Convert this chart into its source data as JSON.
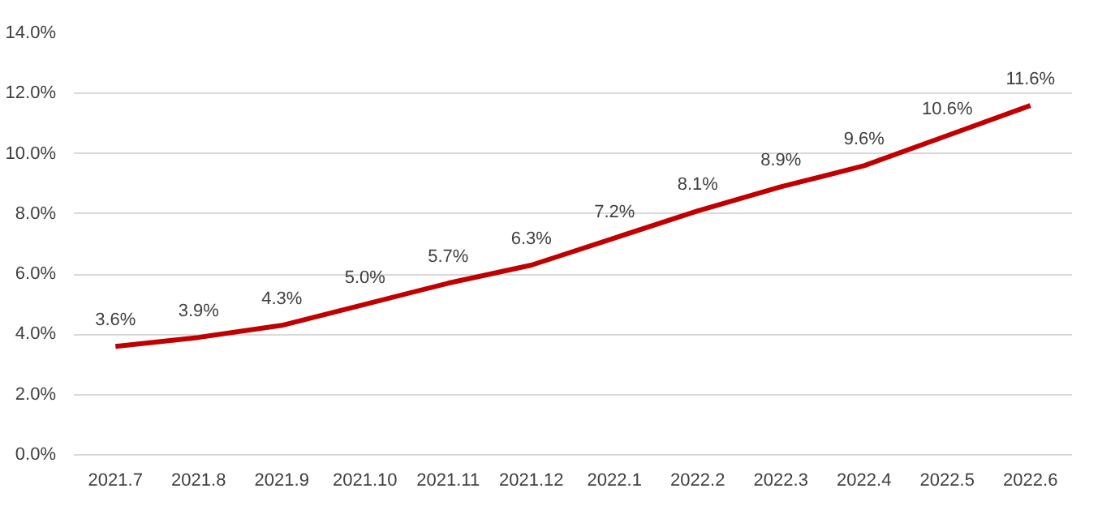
{
  "chart_data": {
    "type": "line",
    "categories": [
      "2021.7",
      "2021.8",
      "2021.9",
      "2021.10",
      "2021.11",
      "2021.12",
      "2022.1",
      "2022.2",
      "2022.3",
      "2022.4",
      "2022.5",
      "2022.6"
    ],
    "series": [
      {
        "color": "#c00000",
        "values": [
          3.6,
          3.9,
          4.3,
          5.0,
          5.7,
          6.3,
          7.2,
          8.1,
          8.9,
          9.6,
          10.6,
          11.6
        ],
        "value_labels": [
          "3.6%",
          "3.9%",
          "4.3%",
          "5.0%",
          "5.7%",
          "6.3%",
          "7.2%",
          "8.1%",
          "8.9%",
          "9.6%",
          "10.6%",
          "11.6%"
        ]
      }
    ],
    "ylim": [
      0,
      14
    ],
    "yticks": [
      {
        "value": 0,
        "label": "0.0%"
      },
      {
        "value": 2,
        "label": "2.0%"
      },
      {
        "value": 4,
        "label": "4.0%"
      },
      {
        "value": 6,
        "label": "6.0%"
      },
      {
        "value": 8,
        "label": "8.0%"
      },
      {
        "value": 10,
        "label": "10.0%"
      },
      {
        "value": 12,
        "label": "12.0%"
      },
      {
        "value": 14,
        "label": "14.0%"
      }
    ],
    "grid": "y",
    "marker": "none",
    "line_style": "solid"
  }
}
